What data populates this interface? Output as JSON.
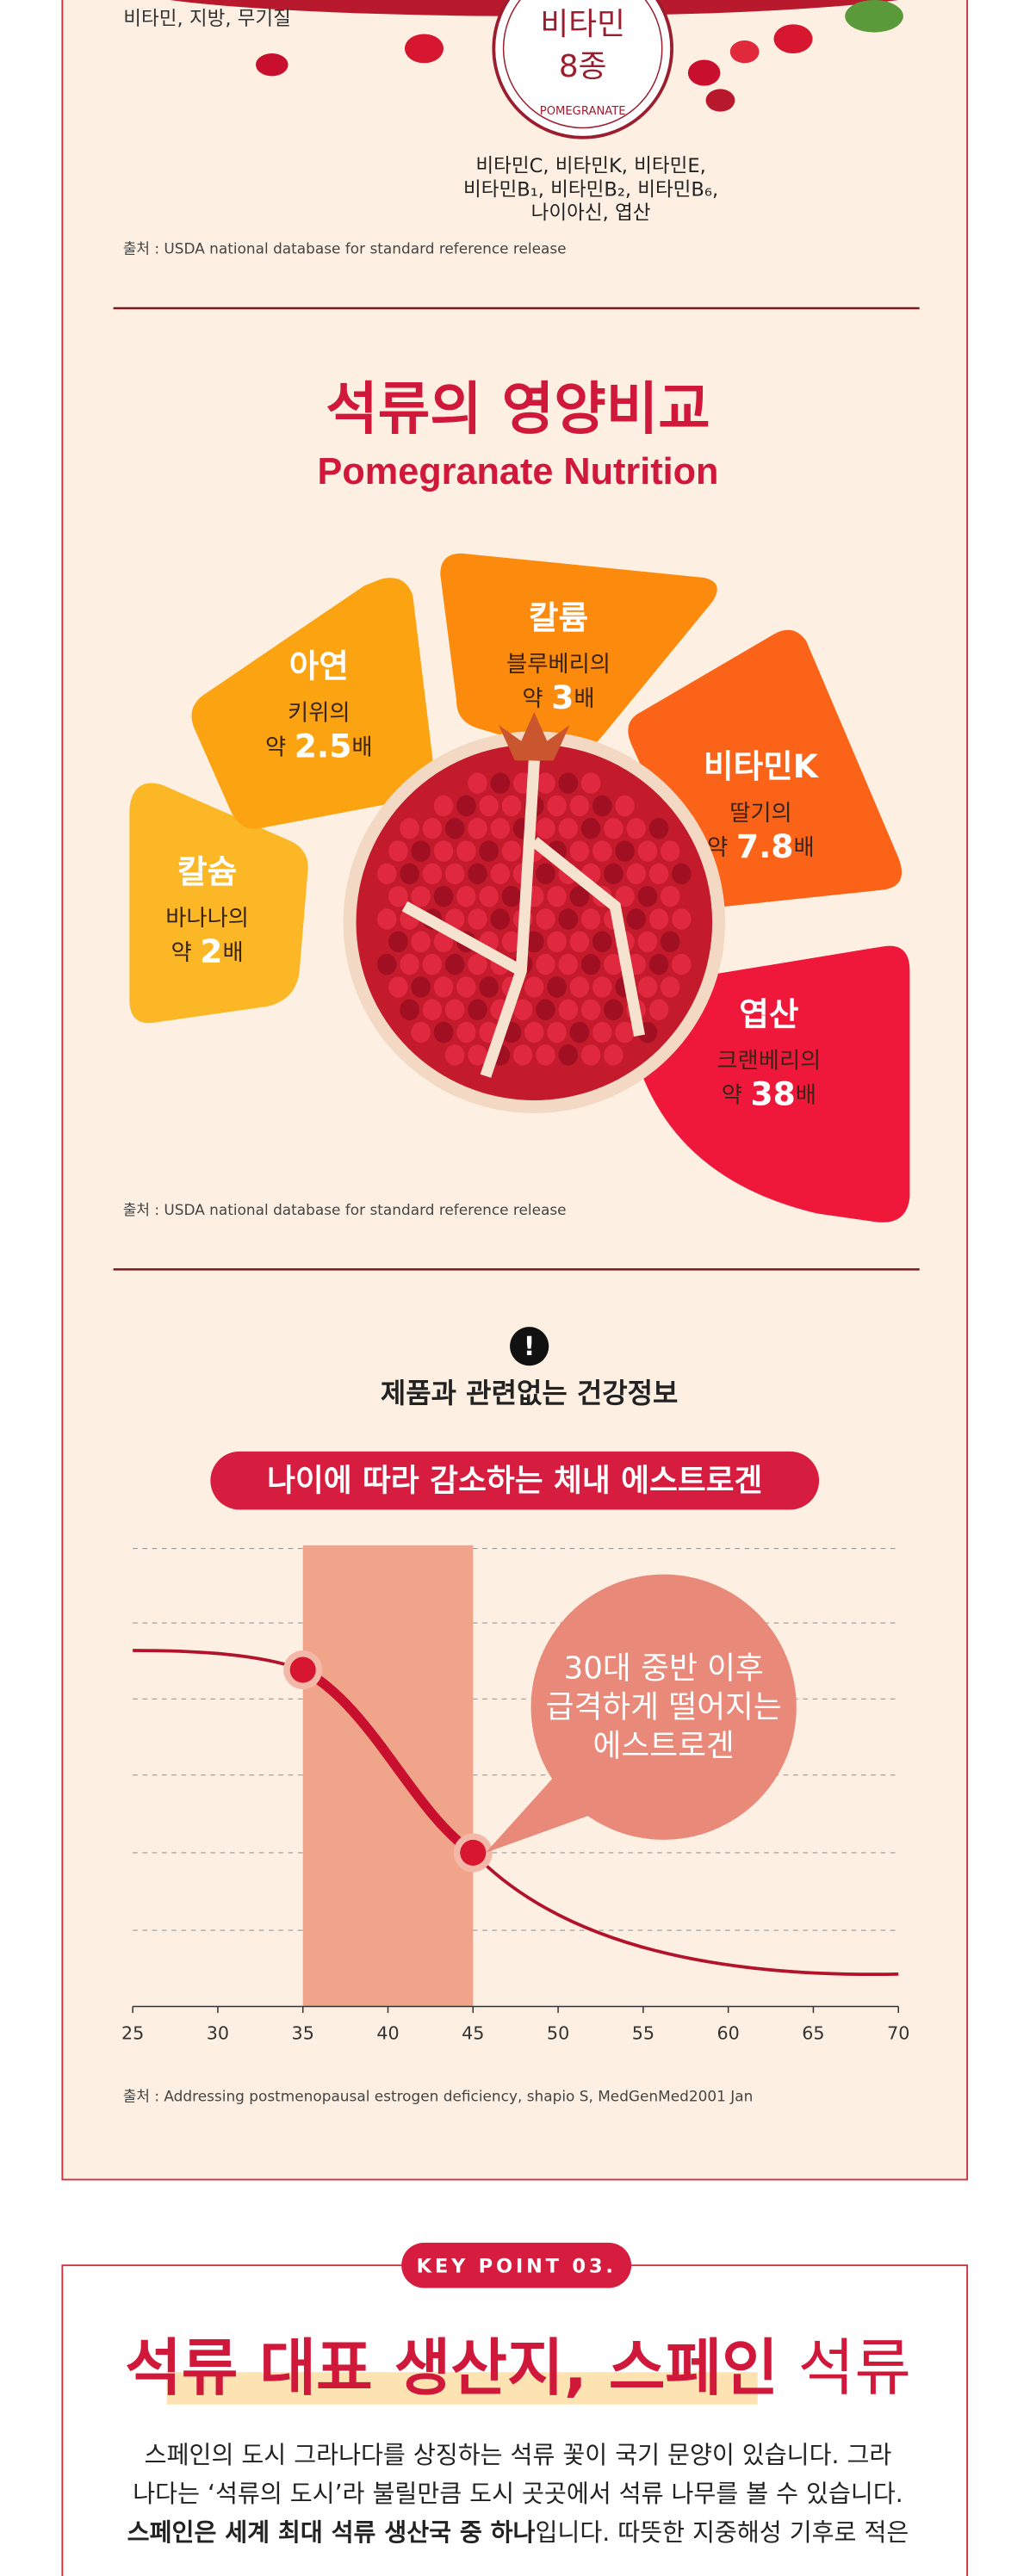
{
  "top_section": {
    "left_text": "비타민, 지방, 무기질",
    "badge_title": "비타민",
    "badge_count": "8종",
    "badge_caption": "POMEGRANATE",
    "vitamin_lines": [
      "비타민C, 비타민K, 비타민E,",
      "비타민B₁, 비타민B₂, 비타민B₆,",
      "나이아신, 엽산"
    ],
    "source": "출처 : USDA national database for standard reference release"
  },
  "nutrition": {
    "title": "석류의 영양비교",
    "subtitle": "Pomegranate Nutrition",
    "items": [
      {
        "name": "칼슘",
        "compare": "바나나의",
        "prefix": "약",
        "multiple": 2,
        "suffix": "배"
      },
      {
        "name": "아연",
        "compare": "키위의",
        "prefix": "약",
        "multiple": 2.5,
        "suffix": "배"
      },
      {
        "name": "칼륨",
        "compare": "블루베리의",
        "prefix": "약",
        "multiple": 3,
        "suffix": "배"
      },
      {
        "name": "비타민K",
        "compare": "딸기의",
        "prefix": "약",
        "multiple": 7.8,
        "suffix": "배"
      },
      {
        "name": "엽산",
        "compare": "크랜베리의",
        "prefix": "약",
        "multiple": 38,
        "suffix": "배"
      }
    ],
    "source": "출처 : USDA national database for standard reference release"
  },
  "estrogen": {
    "notice": "제품과 관련없는 건강정보",
    "title": "나이에 따라 감소하는 체내 에스트로겐",
    "xlim": [
      25,
      70
    ],
    "xticks": [
      25,
      30,
      35,
      40,
      45,
      50,
      55,
      60,
      65,
      70
    ],
    "highlight": [
      35,
      45
    ],
    "bubble_lines": [
      "30대 중반 이후",
      "급격하게 떨어지는",
      "에스트로겐"
    ],
    "source": "출처 : Addressing postmenopausal estrogen deficiency, shapio S, MedGenMed2001 Jan"
  },
  "key_point": {
    "badge": "KEY POINT 03.",
    "title_bold": "석류 대표 생산지, 스페인",
    "title_light": "석류",
    "paragraph": [
      [
        {
          "text": "스페인의 도시 그라나다를 상징하는 석류 꽃이 국기 문양이 있습니다. 그라",
          "bold": false
        }
      ],
      [
        {
          "text": "나다는 ‘석류의 도시’라 불릴만큼 도시 곳곳에서 석류 나무를 볼 수 있습니다.",
          "bold": false
        }
      ],
      [
        {
          "text": "스페인은 세계 최대 석류 생산국 중 하나",
          "bold": true
        },
        {
          "text": "입니다. 따뜻한 지중해성 기후로 적은",
          "bold": false
        }
      ]
    ]
  }
}
